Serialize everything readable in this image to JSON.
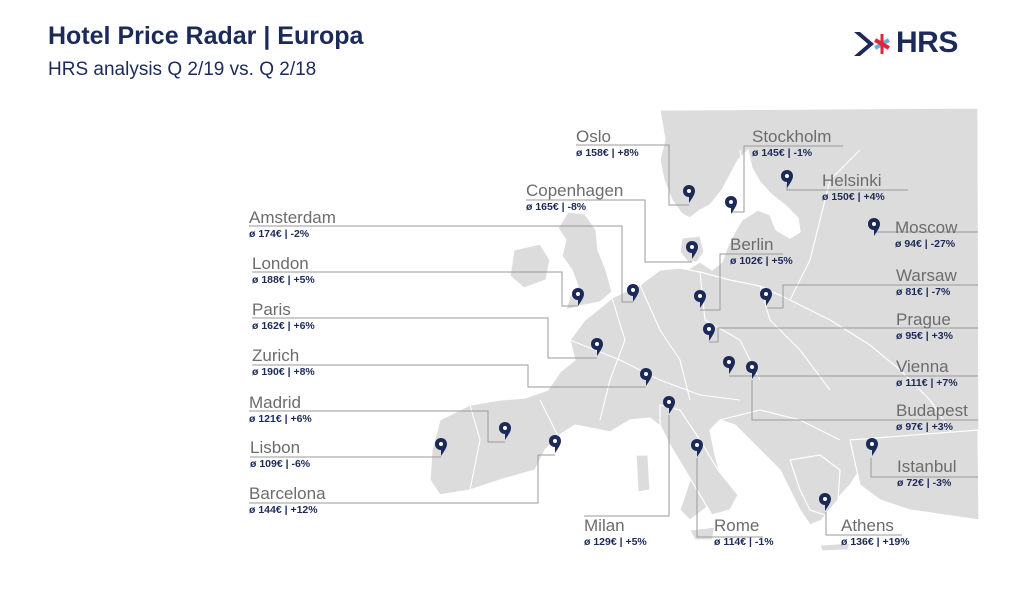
{
  "header": {
    "title": "Hotel Price Radar | Europa",
    "subtitle": "HRS analysis Q 2/19 vs. Q 2/18"
  },
  "logo": {
    "text": "HRS"
  },
  "colors": {
    "land": "#dcdcdc",
    "border": "#ffffff",
    "pin": "#1b2a59",
    "leader": "#9a9a9a",
    "city_text": "#6c6c6c"
  },
  "cities": [
    {
      "name": "Oslo",
      "stats": "ø 158€ | +8%"
    },
    {
      "name": "Stockholm",
      "stats": "ø 145€ | -1%"
    },
    {
      "name": "Helsinki",
      "stats": "ø 150€ | +4%"
    },
    {
      "name": "Copenhagen",
      "stats": "ø 165€ | -8%"
    },
    {
      "name": "Amsterdam",
      "stats": "ø 174€ | -2%"
    },
    {
      "name": "Moscow",
      "stats": "ø 94€ | -27%"
    },
    {
      "name": "Berlin",
      "stats": "ø 102€ | +5%"
    },
    {
      "name": "London",
      "stats": "ø 188€ | +5%"
    },
    {
      "name": "Warsaw",
      "stats": "ø 81€ | -7%"
    },
    {
      "name": "Paris",
      "stats": "ø 162€ | +6%"
    },
    {
      "name": "Prague",
      "stats": "ø 95€ | +3%"
    },
    {
      "name": "Zurich",
      "stats": "ø 190€ | +8%"
    },
    {
      "name": "Vienna",
      "stats": "ø 111€ | +7%"
    },
    {
      "name": "Madrid",
      "stats": "ø 121€ | +6%"
    },
    {
      "name": "Budapest",
      "stats": "ø 97€ | +3%"
    },
    {
      "name": "Lisbon",
      "stats": "ø 109€ | -6%"
    },
    {
      "name": "Istanbul",
      "stats": "ø 72€ | -3%"
    },
    {
      "name": "Barcelona",
      "stats": "ø 144€ | +12%"
    },
    {
      "name": "Milan",
      "stats": "ø 129€ | +5%"
    },
    {
      "name": "Rome",
      "stats": "ø 114€ | -1%"
    },
    {
      "name": "Athens",
      "stats": "ø 136€ | +19%"
    }
  ]
}
